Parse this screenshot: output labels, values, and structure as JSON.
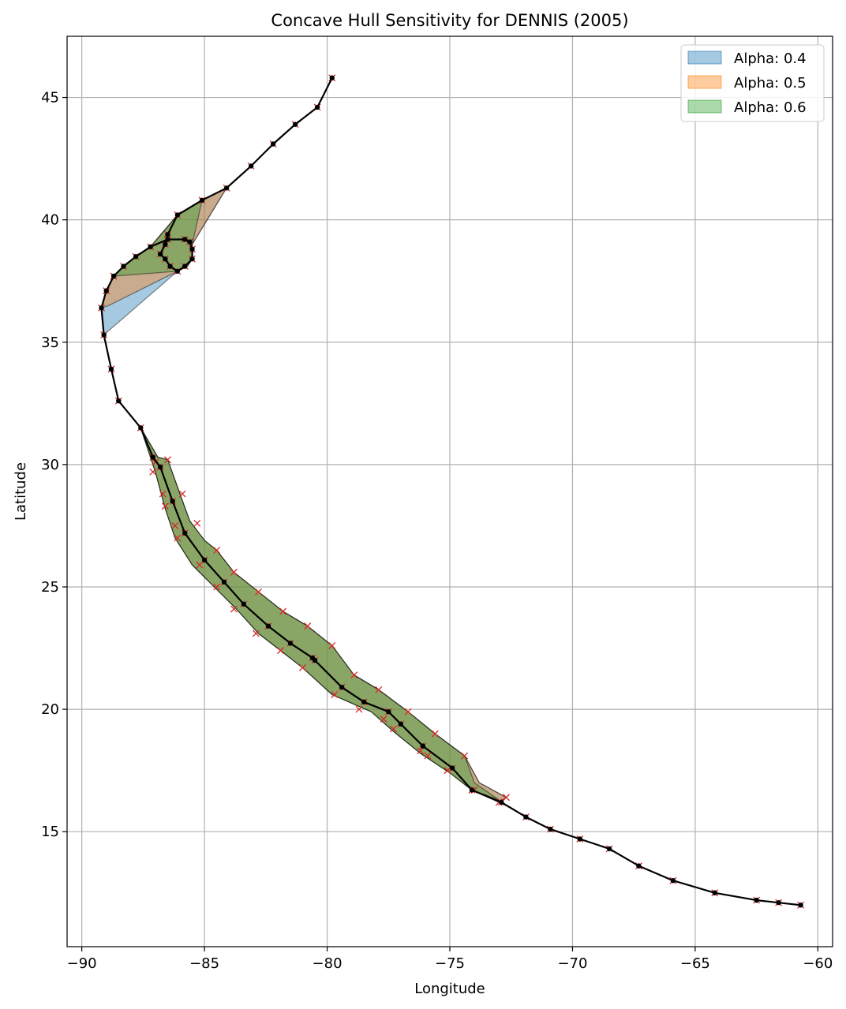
{
  "chart_data": {
    "type": "line",
    "title": "Concave Hull Sensitivity for DENNIS (2005)",
    "xlabel": "Longitude",
    "ylabel": "Latitude",
    "xlim": [
      -90.6,
      -59.4
    ],
    "ylim": [
      10.3,
      47.5
    ],
    "xticks": [
      -90,
      -85,
      -80,
      -75,
      -70,
      -65,
      -60
    ],
    "xtick_labels": [
      "−90",
      "−85",
      "−80",
      "−75",
      "−70",
      "−65",
      "−60"
    ],
    "yticks": [
      15,
      20,
      25,
      30,
      35,
      40,
      45
    ],
    "ytick_labels": [
      "15",
      "20",
      "25",
      "30",
      "35",
      "40",
      "45"
    ],
    "grid": true,
    "legend_position": "top-right",
    "colors": {
      "track": "#000000",
      "buffer_marker": "#d62728",
      "alpha_0_4": "#1f77b4",
      "alpha_0_5": "#ff7f0e",
      "alpha_0_6": "#2ca02c"
    },
    "hulls": [
      {
        "name": "Alpha: 0.4",
        "color": "#1f77b4",
        "points": [
          [
            -87.6,
            31.5
          ],
          [
            -86.9,
            30.3
          ],
          [
            -86.5,
            30.2
          ],
          [
            -86.0,
            28.8
          ],
          [
            -85.6,
            27.7
          ],
          [
            -85.0,
            26.9
          ],
          [
            -84.5,
            26.5
          ],
          [
            -83.8,
            25.6
          ],
          [
            -82.8,
            24.8
          ],
          [
            -81.8,
            24.0
          ],
          [
            -80.8,
            23.4
          ],
          [
            -79.8,
            22.6
          ],
          [
            -78.9,
            21.4
          ],
          [
            -77.9,
            20.8
          ],
          [
            -76.7,
            19.9
          ],
          [
            -75.6,
            19.0
          ],
          [
            -74.4,
            18.1
          ],
          [
            -73.8,
            17.0
          ],
          [
            -72.7,
            16.4
          ],
          [
            -73.0,
            16.2
          ],
          [
            -74.1,
            16.7
          ],
          [
            -75.0,
            17.4
          ],
          [
            -76.2,
            18.2
          ],
          [
            -77.3,
            19.1
          ],
          [
            -78.2,
            19.9
          ],
          [
            -79.8,
            20.6
          ],
          [
            -81.0,
            21.7
          ],
          [
            -81.9,
            22.4
          ],
          [
            -82.8,
            23.1
          ],
          [
            -83.7,
            24.1
          ],
          [
            -84.6,
            25.0
          ],
          [
            -85.5,
            25.9
          ],
          [
            -86.2,
            27.0
          ],
          [
            -86.6,
            28.2
          ],
          [
            -87.0,
            29.7
          ],
          [
            -87.6,
            31.5
          ]
        ]
      },
      {
        "name": "Alpha: 0.5",
        "color": "#ff7f0e",
        "points": [
          [
            -87.6,
            31.5
          ],
          [
            -86.9,
            30.3
          ],
          [
            -86.5,
            30.2
          ],
          [
            -86.0,
            28.8
          ],
          [
            -85.6,
            27.7
          ],
          [
            -85.0,
            26.9
          ],
          [
            -84.5,
            26.5
          ],
          [
            -83.8,
            25.6
          ],
          [
            -82.8,
            24.8
          ],
          [
            -81.8,
            24.0
          ],
          [
            -80.8,
            23.4
          ],
          [
            -79.8,
            22.6
          ],
          [
            -78.9,
            21.4
          ],
          [
            -77.9,
            20.8
          ],
          [
            -76.7,
            19.9
          ],
          [
            -75.6,
            19.0
          ],
          [
            -74.4,
            18.1
          ],
          [
            -73.8,
            17.0
          ],
          [
            -72.7,
            16.4
          ],
          [
            -73.0,
            16.2
          ],
          [
            -74.1,
            16.7
          ],
          [
            -75.0,
            17.4
          ],
          [
            -76.2,
            18.2
          ],
          [
            -77.3,
            19.1
          ],
          [
            -78.2,
            19.9
          ],
          [
            -79.8,
            20.6
          ],
          [
            -81.0,
            21.7
          ],
          [
            -81.9,
            22.4
          ],
          [
            -82.8,
            23.1
          ],
          [
            -83.7,
            24.1
          ],
          [
            -84.6,
            25.0
          ],
          [
            -85.5,
            25.9
          ],
          [
            -86.2,
            27.0
          ],
          [
            -86.6,
            28.2
          ],
          [
            -87.0,
            29.7
          ],
          [
            -87.6,
            31.5
          ]
        ]
      },
      {
        "name": "Alpha: 0.6",
        "color": "#2ca02c",
        "points": [
          [
            -87.6,
            31.5
          ],
          [
            -86.9,
            30.3
          ],
          [
            -86.5,
            30.2
          ],
          [
            -86.0,
            28.8
          ],
          [
            -85.6,
            27.7
          ],
          [
            -85.0,
            26.9
          ],
          [
            -84.5,
            26.5
          ],
          [
            -83.8,
            25.6
          ],
          [
            -82.8,
            24.8
          ],
          [
            -81.8,
            24.0
          ],
          [
            -80.8,
            23.4
          ],
          [
            -79.8,
            22.6
          ],
          [
            -78.9,
            21.4
          ],
          [
            -77.9,
            20.8
          ],
          [
            -76.7,
            19.9
          ],
          [
            -75.6,
            19.0
          ],
          [
            -74.4,
            18.1
          ],
          [
            -74.0,
            17.0
          ],
          [
            -73.0,
            16.3
          ],
          [
            -74.1,
            16.7
          ],
          [
            -75.0,
            17.4
          ],
          [
            -76.2,
            18.2
          ],
          [
            -77.3,
            19.1
          ],
          [
            -78.2,
            19.9
          ],
          [
            -79.8,
            20.6
          ],
          [
            -81.0,
            21.7
          ],
          [
            -81.9,
            22.4
          ],
          [
            -82.8,
            23.1
          ],
          [
            -83.7,
            24.1
          ],
          [
            -84.6,
            25.0
          ],
          [
            -85.5,
            25.9
          ],
          [
            -86.2,
            27.0
          ],
          [
            -86.6,
            28.2
          ],
          [
            -87.0,
            29.7
          ],
          [
            -87.6,
            31.5
          ]
        ]
      }
    ],
    "north_hulls": [
      {
        "name": "Alpha: 0.4",
        "color": "#1f77b4",
        "points": [
          [
            -89.2,
            36.4
          ],
          [
            -89.0,
            37.1
          ],
          [
            -88.7,
            37.7
          ],
          [
            -88.3,
            38.1
          ],
          [
            -87.8,
            38.5
          ],
          [
            -87.2,
            38.9
          ],
          [
            -86.1,
            40.2
          ],
          [
            -85.1,
            40.8
          ],
          [
            -84.1,
            41.3
          ],
          [
            -85.5,
            39.0
          ],
          [
            -85.5,
            38.4
          ],
          [
            -85.7,
            38.1
          ],
          [
            -86.1,
            37.9
          ],
          [
            -89.1,
            35.3
          ],
          [
            -89.2,
            36.4
          ]
        ]
      },
      {
        "name": "Alpha: 0.5",
        "color": "#ff7f0e",
        "points": [
          [
            -89.2,
            36.4
          ],
          [
            -89.0,
            37.1
          ],
          [
            -88.7,
            37.7
          ],
          [
            -88.3,
            38.1
          ],
          [
            -87.8,
            38.5
          ],
          [
            -87.2,
            38.9
          ],
          [
            -86.1,
            40.2
          ],
          [
            -85.1,
            40.8
          ],
          [
            -84.1,
            41.3
          ],
          [
            -85.5,
            39.0
          ],
          [
            -85.5,
            38.4
          ],
          [
            -85.7,
            38.1
          ],
          [
            -86.1,
            37.9
          ],
          [
            -88.9,
            36.5
          ],
          [
            -89.2,
            36.4
          ]
        ]
      },
      {
        "name": "Alpha: 0.6",
        "color": "#2ca02c",
        "points": [
          [
            -88.7,
            37.7
          ],
          [
            -88.3,
            38.1
          ],
          [
            -87.8,
            38.5
          ],
          [
            -87.2,
            38.9
          ],
          [
            -86.1,
            40.2
          ],
          [
            -85.1,
            40.8
          ],
          [
            -85.5,
            39.0
          ],
          [
            -85.5,
            38.4
          ],
          [
            -85.7,
            38.1
          ],
          [
            -86.1,
            37.9
          ],
          [
            -88.7,
            37.7
          ]
        ]
      }
    ],
    "track": [
      [
        -60.7,
        12.0
      ],
      [
        -61.6,
        12.1
      ],
      [
        -62.5,
        12.2
      ],
      [
        -64.2,
        12.5
      ],
      [
        -65.9,
        13.0
      ],
      [
        -67.3,
        13.6
      ],
      [
        -68.5,
        14.3
      ],
      [
        -69.7,
        14.7
      ],
      [
        -70.9,
        15.1
      ],
      [
        -71.9,
        15.6
      ],
      [
        -72.9,
        16.2
      ],
      [
        -74.1,
        16.7
      ],
      [
        -74.9,
        17.6
      ],
      [
        -76.1,
        18.5
      ],
      [
        -77.0,
        19.4
      ],
      [
        -77.5,
        19.9
      ],
      [
        -78.5,
        20.3
      ],
      [
        -79.4,
        20.9
      ],
      [
        -80.5,
        22.0
      ],
      [
        -80.6,
        22.1
      ],
      [
        -81.5,
        22.7
      ],
      [
        -82.4,
        23.4
      ],
      [
        -83.4,
        24.3
      ],
      [
        -84.2,
        25.2
      ],
      [
        -85.0,
        26.1
      ],
      [
        -85.8,
        27.2
      ],
      [
        -86.3,
        28.5
      ],
      [
        -86.8,
        29.9
      ],
      [
        -87.1,
        30.3
      ],
      [
        -87.6,
        31.5
      ],
      [
        -88.5,
        32.6
      ],
      [
        -88.8,
        33.9
      ],
      [
        -89.1,
        35.3
      ],
      [
        -89.2,
        36.4
      ],
      [
        -89.0,
        37.1
      ],
      [
        -88.7,
        37.7
      ],
      [
        -88.3,
        38.1
      ],
      [
        -87.8,
        38.5
      ],
      [
        -87.2,
        38.9
      ],
      [
        -86.5,
        39.2
      ],
      [
        -85.8,
        39.2
      ],
      [
        -85.6,
        39.1
      ],
      [
        -85.5,
        38.8
      ],
      [
        -85.5,
        38.4
      ],
      [
        -85.8,
        38.1
      ],
      [
        -86.1,
        37.9
      ],
      [
        -86.4,
        38.1
      ],
      [
        -86.6,
        38.4
      ],
      [
        -86.8,
        38.6
      ],
      [
        -86.6,
        39.0
      ],
      [
        -86.5,
        39.4
      ],
      [
        -86.1,
        40.2
      ],
      [
        -85.1,
        40.8
      ],
      [
        -84.1,
        41.3
      ],
      [
        -83.1,
        42.2
      ],
      [
        -82.2,
        43.1
      ],
      [
        -81.3,
        43.9
      ],
      [
        -80.4,
        44.6
      ],
      [
        -79.8,
        45.8
      ]
    ],
    "buffer_points": [
      [
        -87.0,
        30.1
      ],
      [
        -87.1,
        29.7
      ],
      [
        -86.5,
        30.2
      ],
      [
        -86.7,
        28.8
      ],
      [
        -85.9,
        28.8
      ],
      [
        -86.6,
        28.3
      ],
      [
        -86.2,
        27.5
      ],
      [
        -86.1,
        27.0
      ],
      [
        -85.3,
        27.6
      ],
      [
        -84.5,
        26.5
      ],
      [
        -85.2,
        25.9
      ],
      [
        -83.8,
        25.6
      ],
      [
        -84.5,
        25.0
      ],
      [
        -82.8,
        24.8
      ],
      [
        -83.8,
        24.1
      ],
      [
        -81.8,
        24.0
      ],
      [
        -82.9,
        23.1
      ],
      [
        -80.8,
        23.4
      ],
      [
        -81.9,
        22.4
      ],
      [
        -81.0,
        21.7
      ],
      [
        -79.8,
        22.6
      ],
      [
        -79.7,
        20.6
      ],
      [
        -78.9,
        21.4
      ],
      [
        -78.7,
        20.0
      ],
      [
        -77.9,
        20.8
      ],
      [
        -77.3,
        19.2
      ],
      [
        -76.7,
        19.9
      ],
      [
        -76.2,
        18.3
      ],
      [
        -75.6,
        19.0
      ],
      [
        -75.1,
        17.5
      ],
      [
        -74.4,
        18.1
      ],
      [
        -74.0,
        16.7
      ],
      [
        -72.7,
        16.4
      ],
      [
        -73.0,
        16.2
      ],
      [
        -75.9,
        18.1
      ],
      [
        -77.7,
        19.6
      ]
    ],
    "legend": [
      "Alpha: 0.4",
      "Alpha: 0.5",
      "Alpha: 0.6"
    ]
  }
}
